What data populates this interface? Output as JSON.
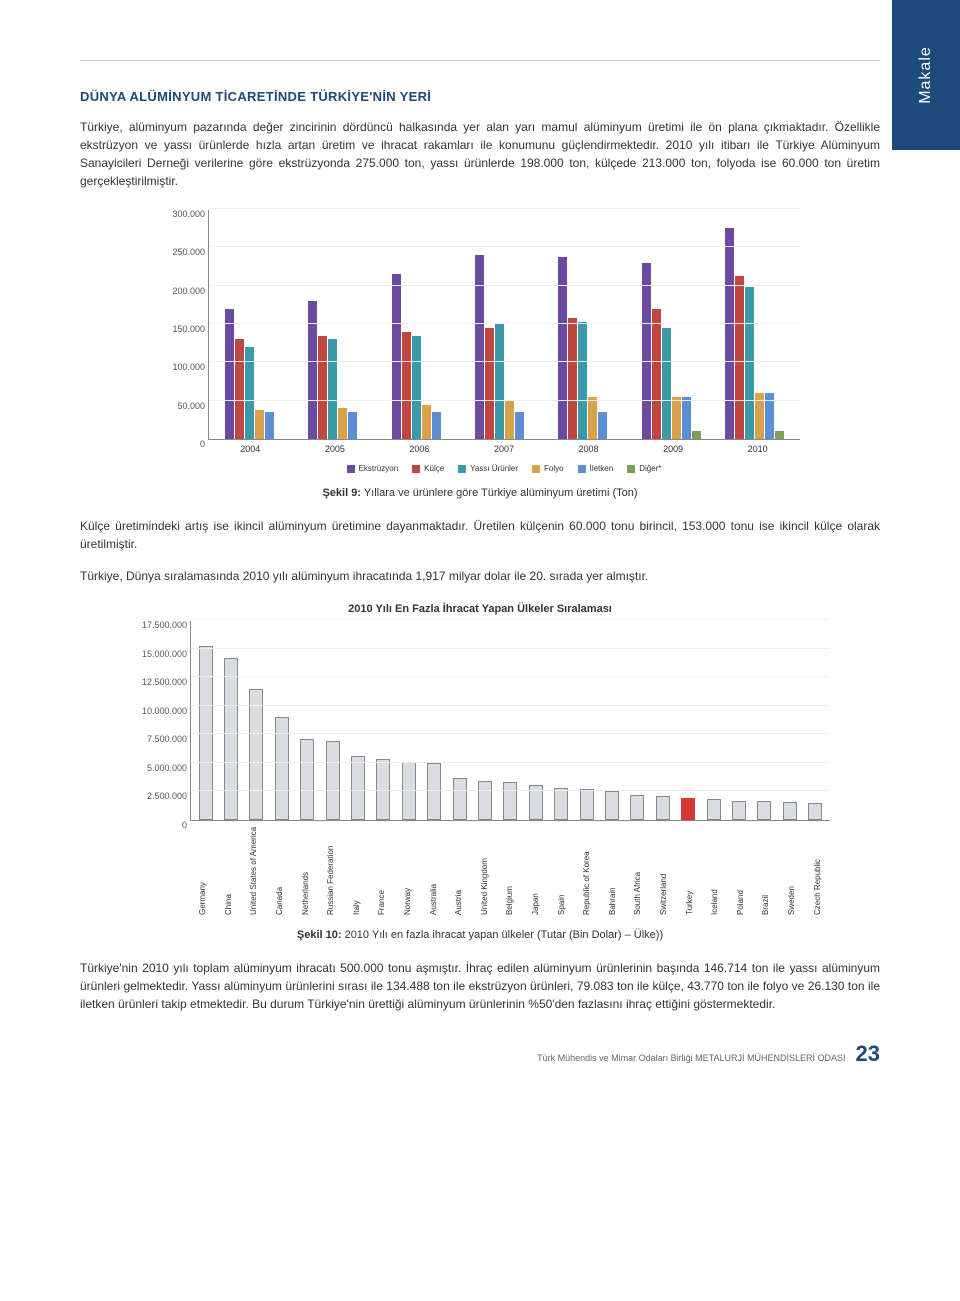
{
  "side_tab": "Makale",
  "section_title": "DÜNYA ALÜMİNYUM TİCARETİNDE TÜRKİYE'NİN YERİ",
  "paragraph1": "Türkiye, alüminyum pazarında değer zincirinin dördüncü halkasında yer alan yarı mamul alüminyum üretimi ile ön plana çıkmaktadır. Özellikle ekstrüzyon ve yassı ürünlerde hızla artan üretim ve ihracat rakamları ile konumunu güçlendirmektedir. 2010 yılı itibarı ile Türkiye Alüminyum Sanayicileri Derneği verilerine göre ekstrüzyonda 275.000 ton, yassı ürünlerde 198.000 ton, külçede 213.000 ton, folyoda ise 60.000 ton üretim gerçekleştirilmiştir.",
  "chart1": {
    "type": "grouped-bar",
    "ymax": 300000,
    "ytick_step": 50000,
    "yticks": [
      "0",
      "50.000",
      "100.000",
      "150.000",
      "200.000",
      "250.000",
      "300.000"
    ],
    "categories": [
      "2004",
      "2005",
      "2006",
      "2007",
      "2008",
      "2009",
      "2010"
    ],
    "series": [
      {
        "name": "Ekstrüzyon",
        "color": "#6b4ba0"
      },
      {
        "name": "Külçe",
        "color": "#c0463f"
      },
      {
        "name": "Yassı Ürünler",
        "color": "#3b9aa8"
      },
      {
        "name": "Folyo",
        "color": "#d9a14a"
      },
      {
        "name": "İletken",
        "color": "#5a8fd6"
      },
      {
        "name": "Diğer*",
        "color": "#7aa05a"
      }
    ],
    "data": [
      [
        170000,
        130000,
        120000,
        38000,
        35000,
        0
      ],
      [
        180000,
        135000,
        130000,
        40000,
        35000,
        0
      ],
      [
        215000,
        140000,
        135000,
        45000,
        35000,
        0
      ],
      [
        240000,
        145000,
        150000,
        50000,
        35000,
        0
      ],
      [
        237000,
        158000,
        152000,
        55000,
        35000,
        0
      ],
      [
        230000,
        170000,
        145000,
        55000,
        55000,
        10000
      ],
      [
        275000,
        213000,
        198000,
        60000,
        60000,
        10000
      ]
    ]
  },
  "caption1_bold": "Şekil 9:",
  "caption1_rest": " Yıllara ve ürünlere göre Türkiye alüminyum üretimi (Ton)",
  "paragraph2": "Külçe üretimindeki artış ise ikincil alüminyum üretimine dayanmaktadır. Üretilen külçenin 60.000 tonu birincil, 153.000 tonu ise ikincil külçe olarak üretilmiştir.",
  "paragraph3": "Türkiye, Dünya sıralamasında 2010 yılı alüminyum ihracatında 1,917 milyar dolar ile 20. sırada yer almıştır.",
  "chart2": {
    "title": "2010 Yılı En Fazla İhracat Yapan Ülkeler Sıralaması",
    "type": "bar",
    "ymax": 17500000,
    "ytick_step": 2500000,
    "yticks": [
      "0",
      "2.500.000",
      "5.000.000",
      "7.500.000",
      "10.000.000",
      "12.500.000",
      "15.000.000",
      "17.500.000"
    ],
    "default_color": "#d9dde2",
    "highlight_color": "#d43a34",
    "border_color": "#888888",
    "bars": [
      {
        "label": "Germany",
        "value": 15200000
      },
      {
        "label": "China",
        "value": 14200000
      },
      {
        "label": "United States of America",
        "value": 11500000
      },
      {
        "label": "Canada",
        "value": 9000000
      },
      {
        "label": "Netherlands",
        "value": 7100000
      },
      {
        "label": "Russian Federation",
        "value": 6900000
      },
      {
        "label": "Italy",
        "value": 5600000
      },
      {
        "label": "France",
        "value": 5300000
      },
      {
        "label": "Norway",
        "value": 5100000
      },
      {
        "label": "Australia",
        "value": 5000000
      },
      {
        "label": "Austria",
        "value": 3700000
      },
      {
        "label": "United Kingdom",
        "value": 3400000
      },
      {
        "label": "Belgium",
        "value": 3300000
      },
      {
        "label": "Japan",
        "value": 3100000
      },
      {
        "label": "Spain",
        "value": 2800000
      },
      {
        "label": "Republic of Korea",
        "value": 2700000
      },
      {
        "label": "Bahrain",
        "value": 2500000
      },
      {
        "label": "South Africa",
        "value": 2200000
      },
      {
        "label": "Switzerland",
        "value": 2100000
      },
      {
        "label": "Turkey",
        "value": 1917000,
        "highlight": true
      },
      {
        "label": "Iceland",
        "value": 1800000
      },
      {
        "label": "Poland",
        "value": 1700000
      },
      {
        "label": "Brazil",
        "value": 1650000
      },
      {
        "label": "Sweden",
        "value": 1600000
      },
      {
        "label": "Czech Republic",
        "value": 1500000
      }
    ]
  },
  "caption2_bold": "Şekil 10:",
  "caption2_rest": " 2010 Yılı en fazla ihracat yapan ülkeler (Tutar (Bin Dolar) – Ülke))",
  "paragraph4": "Türkiye'nin 2010 yılı toplam alüminyum ihracatı 500.000 tonu aşmıştır. İhraç edilen alüminyum ürünlerinin başında 146.714 ton ile yassı alüminyum ürünleri gelmektedir. Yassı alüminyum ürünlerini sırası ile 134.488 ton ile ekstrüzyon ürünleri, 79.083 ton ile külçe, 43.770 ton ile folyo ve 26.130 ton ile iletken ürünleri takip etmektedir. Bu durum Türkiye'nin ürettiği alüminyum ürünlerinin %50'den fazlasını ihraç ettiğini göstermektedir.",
  "footer_text": "Türk Mühendis ve Mimar Odaları Birliği METALURJİ MÜHENDİSLERİ ODASI",
  "page_number": "23"
}
